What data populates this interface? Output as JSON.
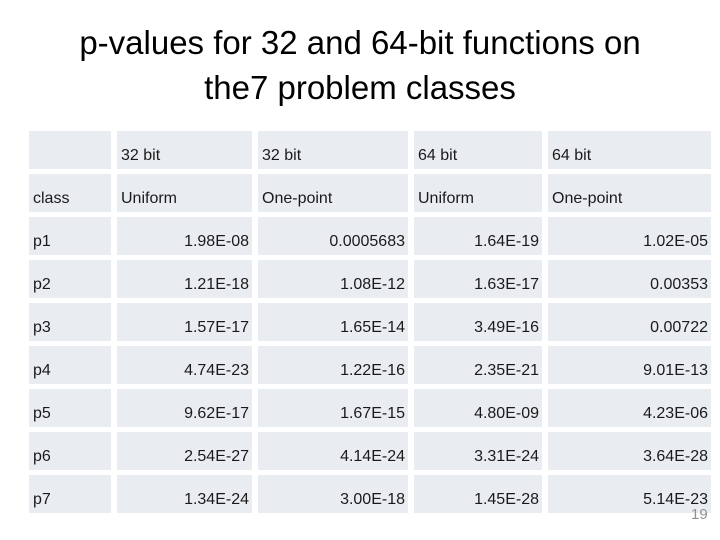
{
  "slide": {
    "title_line1": "p-values for 32 and 64-bit functions on",
    "title_line2": "the7 problem classes",
    "page_number": "19"
  },
  "colors": {
    "background": "#ffffff",
    "cell_background": "#e9edf2",
    "cell_text": "#1a1a1a",
    "title_text": "#000000",
    "page_number_text": "#919191"
  },
  "table": {
    "header_row1": [
      "",
      "32 bit",
      "32 bit",
      "64 bit",
      "64 bit"
    ],
    "header_row2": [
      "class",
      "Uniform",
      "One-point",
      "Uniform",
      "One-point"
    ],
    "rows": [
      {
        "label": "p1",
        "values": [
          "1.98E-08",
          "0.0005683",
          "1.64E-19",
          "1.02E-05"
        ]
      },
      {
        "label": "p2",
        "values": [
          "1.21E-18",
          "1.08E-12",
          "1.63E-17",
          "0.00353"
        ]
      },
      {
        "label": "p3",
        "values": [
          "1.57E-17",
          "1.65E-14",
          "3.49E-16",
          "0.00722"
        ]
      },
      {
        "label": "p4",
        "values": [
          "4.74E-23",
          "1.22E-16",
          "2.35E-21",
          "9.01E-13"
        ]
      },
      {
        "label": "p5",
        "values": [
          "9.62E-17",
          "1.67E-15",
          "4.80E-09",
          "4.23E-06"
        ]
      },
      {
        "label": "p6",
        "values": [
          "2.54E-27",
          "4.14E-24",
          "3.31E-24",
          "3.64E-28"
        ]
      },
      {
        "label": "p7",
        "values": [
          "1.34E-24",
          "3.00E-18",
          "1.45E-28",
          "5.14E-23"
        ]
      }
    ]
  }
}
